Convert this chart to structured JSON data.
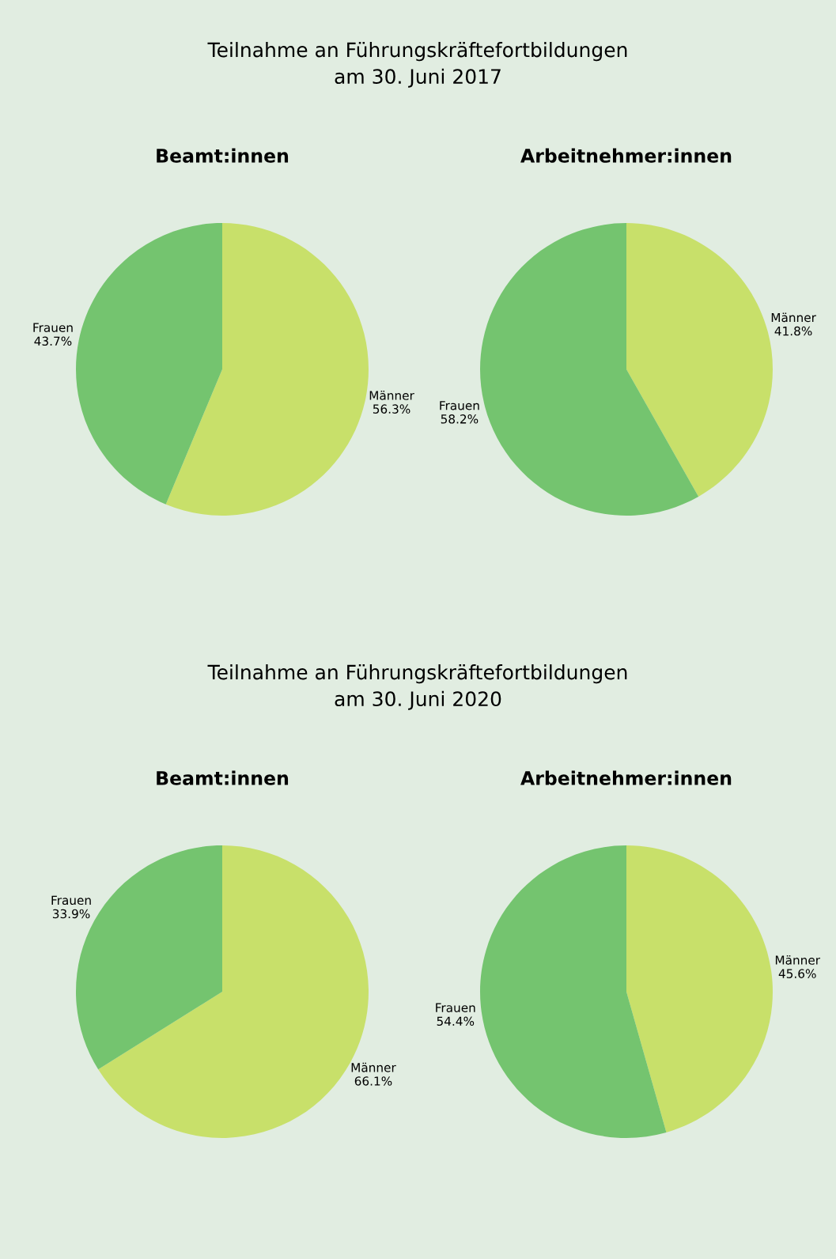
{
  "chart_data": [
    {
      "type": "pie",
      "annotations": [
        "Teilnahme an Führungskräftefortbildungen\nam 30. Juni 2017"
      ],
      "title": "Beamt:innen",
      "categories": [
        "Männer",
        "Frauen"
      ],
      "values": [
        56.3,
        43.7
      ],
      "value_labels": [
        "56.3%",
        "43.7%"
      ],
      "colors": [
        "#c8e06a",
        "#74c46f"
      ]
    },
    {
      "type": "pie",
      "title": "Arbeitnehmer:innen",
      "categories": [
        "Männer",
        "Frauen"
      ],
      "values": [
        41.8,
        58.2
      ],
      "value_labels": [
        "41.8%",
        "58.2%"
      ],
      "colors": [
        "#c8e06a",
        "#74c46f"
      ]
    },
    {
      "type": "pie",
      "annotations": [
        "Teilnahme an Führungskräftefortbildungen\nam 30. Juni 2020"
      ],
      "title": "Beamt:innen",
      "categories": [
        "Männer",
        "Frauen"
      ],
      "values": [
        66.1,
        33.9
      ],
      "value_labels": [
        "66.1%",
        "33.9%"
      ],
      "colors": [
        "#c8e06a",
        "#74c46f"
      ]
    },
    {
      "type": "pie",
      "title": "Arbeitnehmer:innen",
      "categories": [
        "Männer",
        "Frauen"
      ],
      "values": [
        45.6,
        54.4
      ],
      "value_labels": [
        "45.6%",
        "54.4%"
      ],
      "colors": [
        "#c8e06a",
        "#74c46f"
      ]
    }
  ]
}
